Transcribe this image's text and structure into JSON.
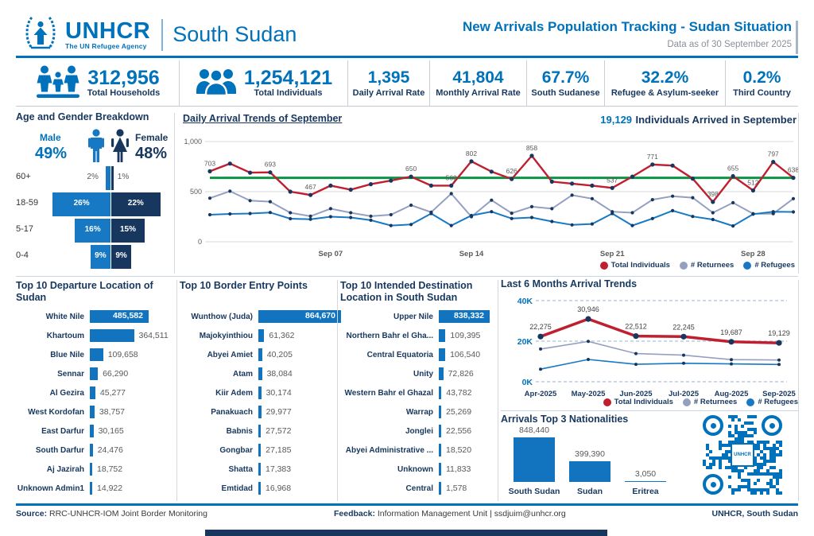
{
  "header": {
    "brand": "UNHCR",
    "brand_tagline": "The UN Refugee Agency",
    "region": "South Sudan",
    "title": "New Arrivals Population Tracking - Sudan Situation",
    "data_as_of": "Data as of 30 September 2025"
  },
  "kpis": [
    {
      "value": "312,956",
      "label": "Total Households",
      "icon": "households-icon"
    },
    {
      "value": "1,254,121",
      "label": "Total Individuals",
      "icon": "individuals-icon"
    },
    {
      "value": "1,395",
      "label": "Daily Arrival Rate"
    },
    {
      "value": "41,804",
      "label": "Monthly Arrival Rate"
    },
    {
      "value": "67.7%",
      "label": "South Sudanese"
    },
    {
      "value": "32.2%",
      "label": "Refugee & Asylum-seeker"
    },
    {
      "value": "0.2%",
      "label": "Third Country"
    }
  ],
  "colors": {
    "unhcr_blue": "#0072BC",
    "navy": "#17375E",
    "bar_blue": "#1274BE",
    "male_blue": "#1779C4",
    "red_line": "#C01F2F",
    "returnees_line": "#95A0C0",
    "refugees_line": "#1779C4",
    "green_average": "#0B9444",
    "gray_text": "#595959"
  },
  "chart_data": [
    {
      "id": "age_gender",
      "type": "bar",
      "title": "Age and Gender Breakdown",
      "male_label": "Male",
      "male_pct": "49%",
      "female_label": "Female",
      "female_pct": "48%",
      "categories": [
        "60+",
        "18-59",
        "5-17",
        "0-4"
      ],
      "series": [
        {
          "name": "Male",
          "values": [
            2,
            26,
            16,
            9
          ]
        },
        {
          "name": "Female",
          "values": [
            1,
            22,
            15,
            9
          ]
        }
      ],
      "unit": "%"
    },
    {
      "id": "daily_trends",
      "type": "line",
      "title": "Daily Arrival Trends of September",
      "annotation_value": "19,129",
      "annotation_text": "Individuals Arrived in September",
      "x_ticks": [
        "Sep 07",
        "Sep 14",
        "Sep 21",
        "Sep 28"
      ],
      "x_tick_day_index": [
        6,
        13,
        20,
        27
      ],
      "ylim": [
        0,
        1000
      ],
      "y_ticks": [
        "1,000",
        "500",
        "0"
      ],
      "average_line": 638,
      "series": [
        {
          "name": "Total Individuals",
          "color": "#C01F2F",
          "values": [
            703,
            780,
            690,
            693,
            500,
            467,
            560,
            520,
            575,
            610,
            650,
            560,
            560,
            802,
            700,
            626,
            858,
            600,
            580,
            560,
            537,
            650,
            771,
            760,
            630,
            398,
            655,
            512,
            797,
            638
          ]
        },
        {
          "name": "# Returnees",
          "color": "#95A0C0",
          "values": [
            435,
            505,
            410,
            400,
            290,
            255,
            330,
            290,
            255,
            270,
            365,
            295,
            480,
            250,
            415,
            285,
            350,
            330,
            465,
            430,
            300,
            290,
            420,
            455,
            440,
            290,
            390,
            280,
            280,
            430
          ]
        },
        {
          "name": "# Refugees",
          "color": "#1779C4",
          "values": [
            270,
            278,
            282,
            292,
            230,
            225,
            250,
            242,
            215,
            162,
            172,
            282,
            162,
            262,
            300,
            232,
            242,
            202,
            168,
            178,
            282,
            162,
            232,
            310,
            252,
            222,
            158,
            275,
            300,
            298
          ]
        }
      ],
      "point_labels": {
        "0": "703",
        "3": "693",
        "5": "467",
        "10": "650",
        "12": "560",
        "13": "802",
        "15": "626",
        "16": "858",
        "20": "537",
        "22": "771",
        "25": "398",
        "26": "655",
        "27": "512",
        "28": "797",
        "29": "638"
      }
    },
    {
      "id": "top_departure",
      "type": "bar",
      "title": "Top 10 Departure Location of Sudan",
      "categories": [
        "White Nile",
        "Khartoum",
        "Blue Nile",
        "Sennar",
        "Al Gezira",
        "West Kordofan",
        "East Darfur",
        "South Darfur",
        "Aj Jazirah",
        "Unknown Admin1"
      ],
      "values": [
        485582,
        364511,
        109658,
        66290,
        45277,
        38757,
        30165,
        24476,
        18752,
        14922
      ],
      "value_labels": [
        "485,582",
        "364,511",
        "109,658",
        "66,290",
        "45,277",
        "38,757",
        "30,165",
        "24,476",
        "18,752",
        "14,922"
      ]
    },
    {
      "id": "border_entry_points",
      "type": "bar",
      "title": "Top 10 Border Entry Points",
      "categories": [
        "Wunthow (Juda)",
        "Majokyinthiou",
        "Abyei Amiet",
        "Atam",
        "Kiir Adem",
        "Panakuach",
        "Babnis",
        "Gongbar",
        "Shatta",
        "Emtidad"
      ],
      "values": [
        864670,
        61362,
        40205,
        38084,
        30174,
        29977,
        27572,
        27185,
        17383,
        16968
      ],
      "value_labels": [
        "864,670",
        "61,362",
        "40,205",
        "38,084",
        "30,174",
        "29,977",
        "27,572",
        "27,185",
        "17,383",
        "16,968"
      ]
    },
    {
      "id": "intended_destination",
      "type": "bar",
      "title": "Top 10 Intended Destination Location in South Sudan",
      "categories": [
        "Upper Nile",
        "Northern Bahr el Gha...",
        "Central Equatoria",
        "Unity",
        "Western Bahr el Ghazal",
        "Warrap",
        "Jonglei",
        "Abyei Administrative ...",
        "Unknown",
        "Central"
      ],
      "values": [
        838332,
        109395,
        106540,
        72826,
        43782,
        25269,
        22556,
        18520,
        11833,
        1578
      ],
      "value_labels": [
        "838,332",
        "109,395",
        "106,540",
        "72,826",
        "43,782",
        "25,269",
        "22,556",
        "18,520",
        "11,833",
        "1,578"
      ]
    },
    {
      "id": "last_6_months",
      "type": "line",
      "title": "Last 6 Months Arrival Trends",
      "categories": [
        "Apr-2025",
        "May-2025",
        "Jun-2025",
        "Jul-2025",
        "Aug-2025",
        "Sep-2025"
      ],
      "ylim": [
        0,
        40000
      ],
      "y_ticks": [
        "40K",
        "20K",
        "0K"
      ],
      "series": [
        {
          "name": "Total Individuals",
          "color": "#C01F2F",
          "values": [
            22275,
            30946,
            22512,
            22245,
            19687,
            19129
          ],
          "labels": [
            "22,275",
            "30,946",
            "22,512",
            "22,245",
            "19,687",
            "19,129"
          ]
        },
        {
          "name": "# Returnees",
          "color": "#95A0C0",
          "values": [
            16100,
            19900,
            13900,
            13100,
            10900,
            10700
          ]
        },
        {
          "name": "# Refugees",
          "color": "#1779C4",
          "values": [
            6200,
            11000,
            8600,
            9100,
            8800,
            8500
          ]
        }
      ]
    },
    {
      "id": "top_nationalities",
      "type": "bar",
      "title": "Arrivals Top 3 Nationalities",
      "categories": [
        "South Sudan",
        "Sudan",
        "Eritrea"
      ],
      "values": [
        848440,
        399390,
        3050
      ],
      "value_labels": [
        "848,440",
        "399,390",
        "3,050"
      ]
    }
  ],
  "footer": {
    "source_label": "Source:",
    "source_text": " RRC-UNHCR-IOM Joint Border Monitoring",
    "feedback_label": "Feedback:",
    "feedback_text": " Information Management Unit | ssdjuim@unhcr.org",
    "credit": "UNHCR, South Sudan"
  }
}
